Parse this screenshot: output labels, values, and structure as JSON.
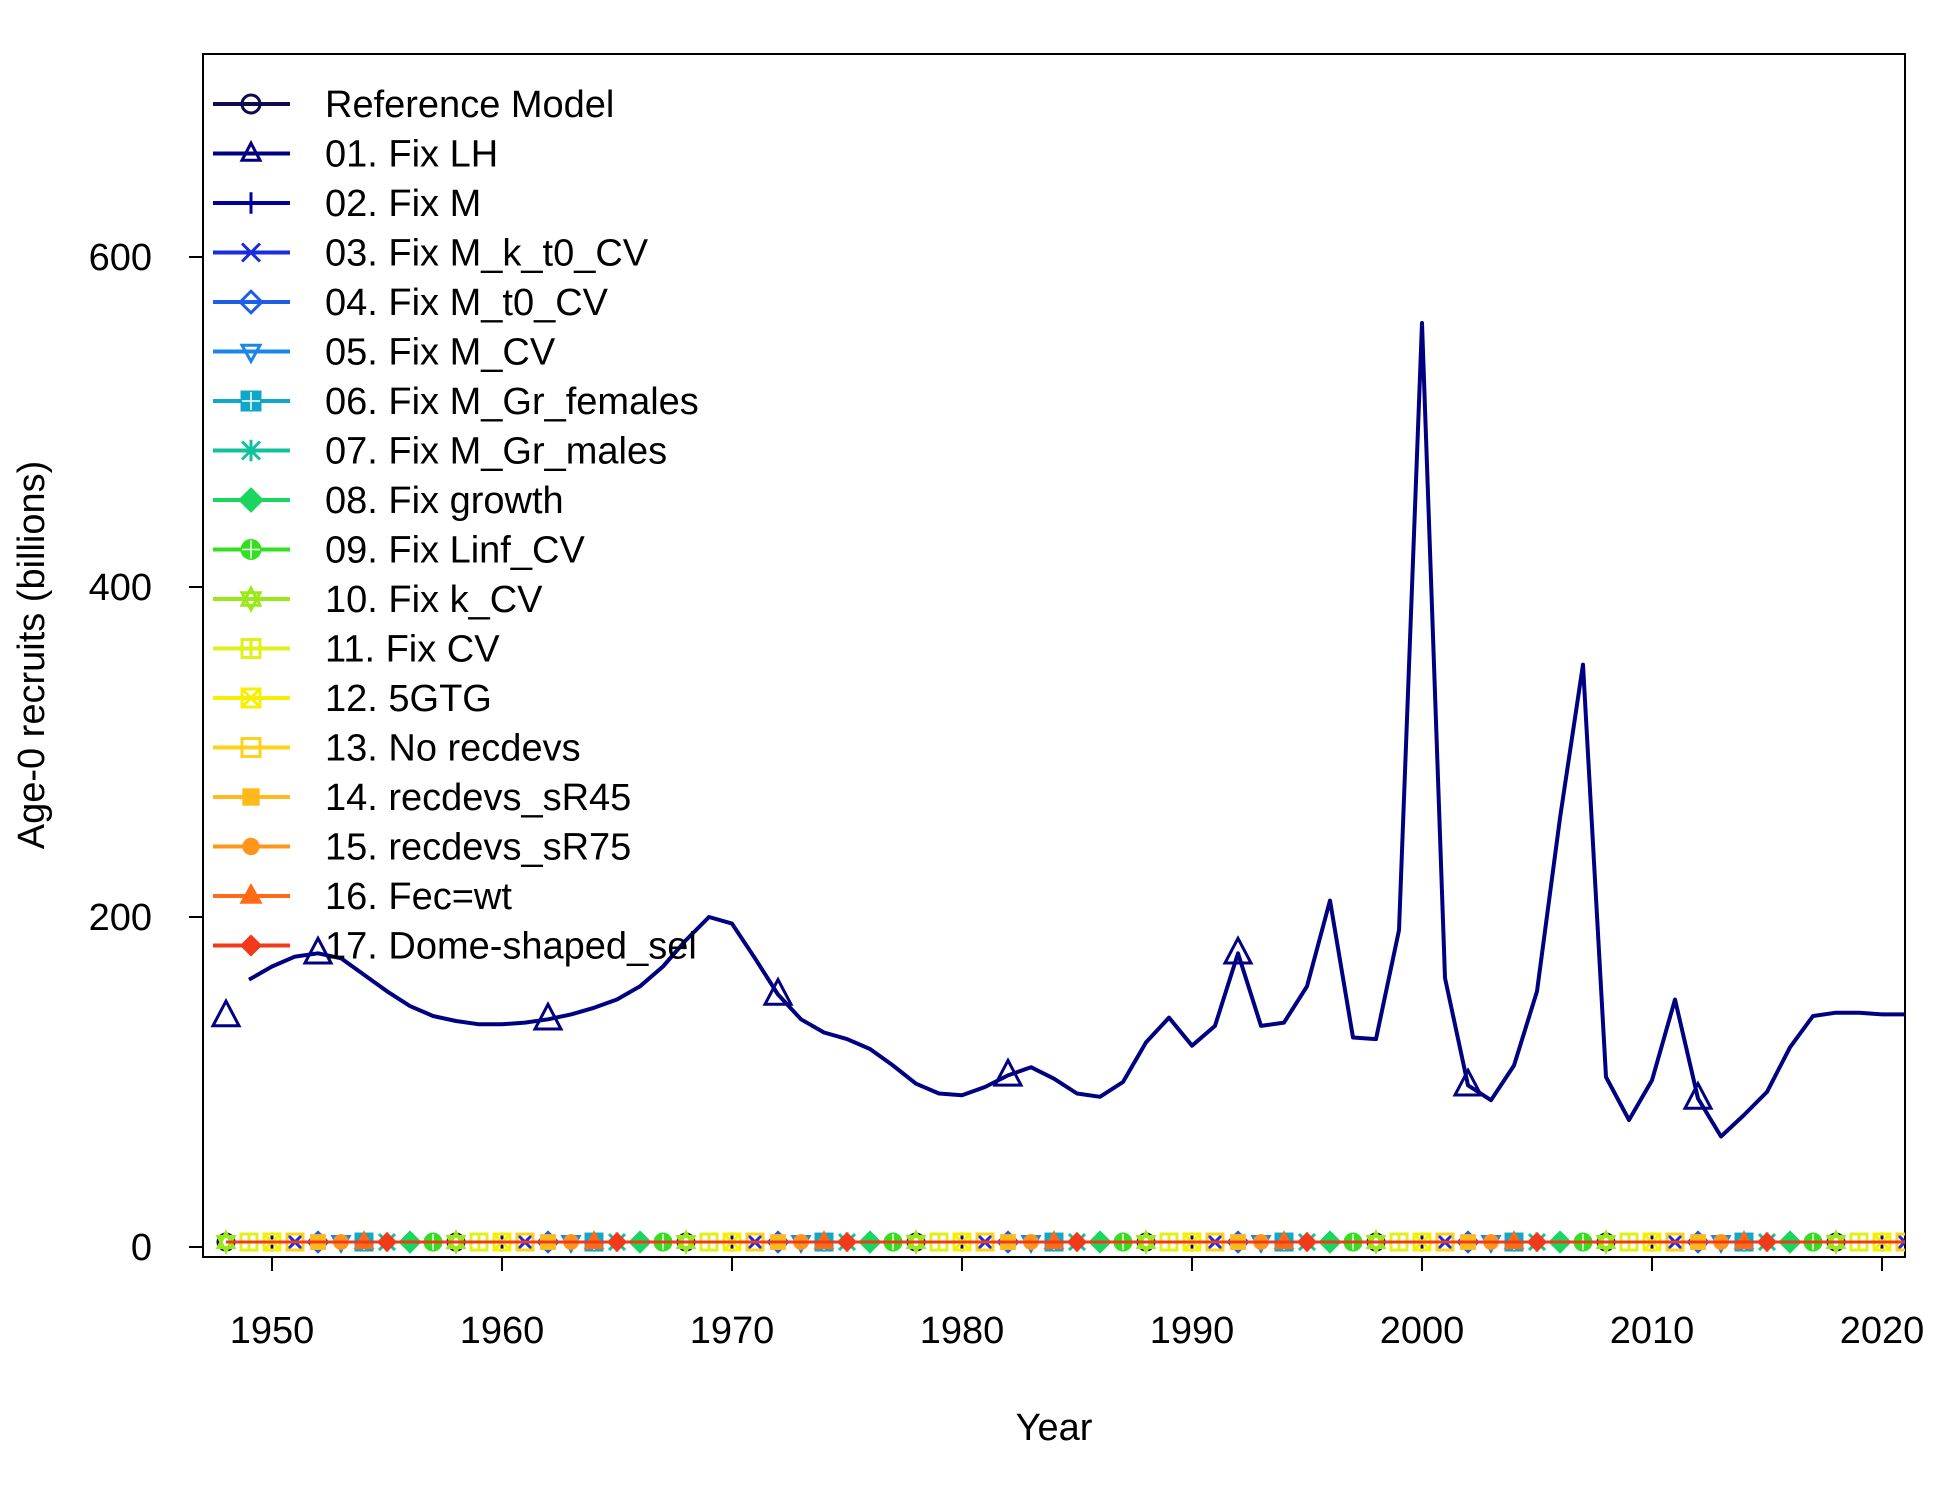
{
  "chart_data": {
    "type": "line",
    "title": "",
    "xlabel": "Year",
    "ylabel": "Age-0 recruits (billions)",
    "xlim": [
      1947,
      2021
    ],
    "ylim": [
      0,
      600
    ],
    "x_ticks": [
      "1950",
      "1960",
      "1970",
      "1980",
      "1990",
      "2000",
      "2010",
      "2020"
    ],
    "y_ticks": [
      "0",
      "200",
      "400",
      "600"
    ],
    "legend_position": "top-left",
    "highlight_series": "01. Fix LH",
    "highlight_color": "#000080",
    "highlight_x": [
      1948,
      1949,
      1950,
      1951,
      1952,
      1953,
      1954,
      1955,
      1956,
      1957,
      1958,
      1959,
      1960,
      1961,
      1962,
      1963,
      1964,
      1965,
      1966,
      1967,
      1968,
      1969,
      1970,
      1971,
      1972,
      1973,
      1974,
      1975,
      1976,
      1977,
      1978,
      1979,
      1980,
      1981,
      1982,
      1983,
      1984,
      1985,
      1986,
      1987,
      1988,
      1989,
      1990,
      1991,
      1992,
      1993,
      1994,
      1995,
      1996,
      1997,
      1998,
      1999,
      2000,
      2001,
      2002,
      2003,
      2004,
      2005,
      2006,
      2007,
      2008,
      2009,
      2010,
      2011,
      2012,
      2013,
      2014,
      2015,
      2016,
      2017,
      2018,
      2019,
      2020,
      2021
    ],
    "highlight_values": [
      140,
      162,
      170,
      176,
      178,
      175,
      165,
      155,
      146,
      140,
      137,
      135,
      135,
      136,
      138,
      141,
      145,
      150,
      158,
      170,
      186,
      200,
      196,
      175,
      153,
      138,
      130,
      126,
      120,
      110,
      99,
      93,
      92,
      97,
      104,
      109,
      102,
      93,
      91,
      100,
      124,
      139,
      122,
      134,
      178,
      134,
      136,
      158,
      210,
      127,
      126,
      192,
      560,
      163,
      98,
      89,
      110,
      155,
      260,
      353,
      103,
      77,
      101,
      150,
      90,
      67,
      80,
      94,
      121,
      140,
      142,
      142,
      141,
      141
    ],
    "highlight_marker_years": [
      1948,
      1952,
      1962,
      1972,
      1982,
      1992,
      2002,
      2012
    ],
    "flat_values_near_zero": 3,
    "series": [
      {
        "name": "Reference Model",
        "color": "#0d0d4d",
        "marker": "circle"
      },
      {
        "name": "01. Fix LH",
        "color": "#000080",
        "marker": "triangle"
      },
      {
        "name": "02. Fix M",
        "color": "#00009f",
        "marker": "plus"
      },
      {
        "name": "03. Fix M_k_t0_CV",
        "color": "#1a2be0",
        "marker": "cross"
      },
      {
        "name": "04. Fix M_t0_CV",
        "color": "#1e5fe6",
        "marker": "diamond"
      },
      {
        "name": "05. Fix M_CV",
        "color": "#1c86e8",
        "marker": "triangle-down"
      },
      {
        "name": "06. Fix M_Gr_females",
        "color": "#10a8c8",
        "marker": "square-cross"
      },
      {
        "name": "07. Fix M_Gr_males",
        "color": "#12c29a",
        "marker": "asterisk"
      },
      {
        "name": "08. Fix growth",
        "color": "#1ad65e",
        "marker": "diamond-plus"
      },
      {
        "name": "09. Fix Linf_CV",
        "color": "#33e020",
        "marker": "circle-plus"
      },
      {
        "name": "10. Fix k_CV",
        "color": "#9ae81a",
        "marker": "star"
      },
      {
        "name": "11. Fix CV",
        "color": "#e0f01a",
        "marker": "square-plus"
      },
      {
        "name": "12. 5GTG",
        "color": "#f6f000",
        "marker": "square-x"
      },
      {
        "name": "13. No recdevs",
        "color": "#ffd21a",
        "marker": "square"
      },
      {
        "name": "14. recdevs_sR45",
        "color": "#ffb91a",
        "marker": "filled-square"
      },
      {
        "name": "15. recdevs_sR75",
        "color": "#ff951a",
        "marker": "filled-circle"
      },
      {
        "name": "16. Fec=wt",
        "color": "#ff6a14",
        "marker": "filled-triangle"
      },
      {
        "name": "17. Dome-shaped_sel",
        "color": "#f03a1a",
        "marker": "filled-diamond"
      }
    ]
  }
}
